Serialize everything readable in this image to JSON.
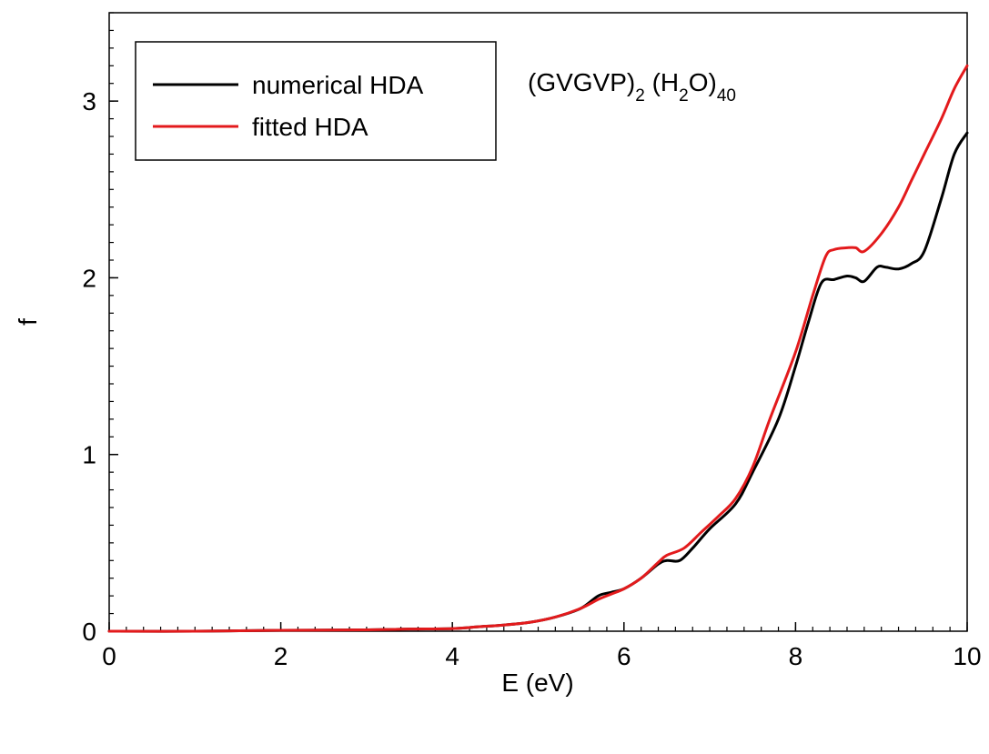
{
  "chart_data": {
    "type": "line",
    "xlabel": "E (eV)",
    "ylabel": "f",
    "xlim": [
      0,
      10
    ],
    "ylim": [
      0,
      3.5
    ],
    "xticks": [
      0,
      2,
      4,
      6,
      8,
      10
    ],
    "xtick_labels": [
      "0",
      "2",
      "4",
      "6",
      "8",
      "10"
    ],
    "yticks": [
      0,
      1,
      2,
      3
    ],
    "ytick_labels": [
      "0",
      "1",
      "2",
      "3"
    ],
    "grid": false,
    "legend_position": "top-left",
    "annotation": {
      "parts": [
        {
          "text": "(GVGVP)",
          "sub": false
        },
        {
          "text": "2",
          "sub": true
        },
        {
          "text": " (H",
          "sub": false
        },
        {
          "text": "2",
          "sub": true
        },
        {
          "text": "O)",
          "sub": false
        },
        {
          "text": "40",
          "sub": true
        }
      ]
    },
    "series": [
      {
        "name": "numerical HDA",
        "color": "#000000",
        "x": [
          0,
          1,
          2,
          3,
          3.5,
          4,
          4.3,
          4.6,
          4.9,
          5.2,
          5.5,
          5.7,
          5.85,
          6.0,
          6.2,
          6.4,
          6.5,
          6.65,
          6.8,
          7.0,
          7.3,
          7.5,
          7.8,
          8.0,
          8.15,
          8.3,
          8.45,
          8.6,
          8.7,
          8.8,
          8.95,
          9.05,
          9.2,
          9.35,
          9.5,
          9.7,
          9.85,
          10.0
        ],
        "y": [
          0,
          0,
          0.005,
          0.008,
          0.012,
          0.015,
          0.025,
          0.035,
          0.05,
          0.08,
          0.13,
          0.2,
          0.22,
          0.24,
          0.3,
          0.38,
          0.4,
          0.4,
          0.47,
          0.58,
          0.72,
          0.9,
          1.2,
          1.5,
          1.75,
          1.97,
          1.99,
          2.01,
          2.0,
          1.98,
          2.06,
          2.06,
          2.05,
          2.08,
          2.15,
          2.45,
          2.7,
          2.82
        ]
      },
      {
        "name": "fitted HDA",
        "color": "#e31a1c",
        "x": [
          0,
          1,
          2,
          3,
          3.5,
          4,
          4.3,
          4.6,
          4.9,
          5.2,
          5.5,
          5.7,
          5.85,
          6.0,
          6.2,
          6.4,
          6.5,
          6.7,
          6.9,
          7.1,
          7.3,
          7.5,
          7.7,
          8.0,
          8.2,
          8.35,
          8.45,
          8.6,
          8.7,
          8.8,
          9.0,
          9.2,
          9.35,
          9.5,
          9.7,
          9.85,
          10.0
        ],
        "y": [
          0,
          0,
          0.005,
          0.008,
          0.012,
          0.015,
          0.025,
          0.035,
          0.05,
          0.08,
          0.13,
          0.18,
          0.21,
          0.24,
          0.3,
          0.39,
          0.43,
          0.47,
          0.56,
          0.65,
          0.75,
          0.93,
          1.2,
          1.58,
          1.9,
          2.12,
          2.16,
          2.17,
          2.17,
          2.15,
          2.25,
          2.4,
          2.55,
          2.7,
          2.9,
          3.07,
          3.2
        ]
      }
    ]
  }
}
